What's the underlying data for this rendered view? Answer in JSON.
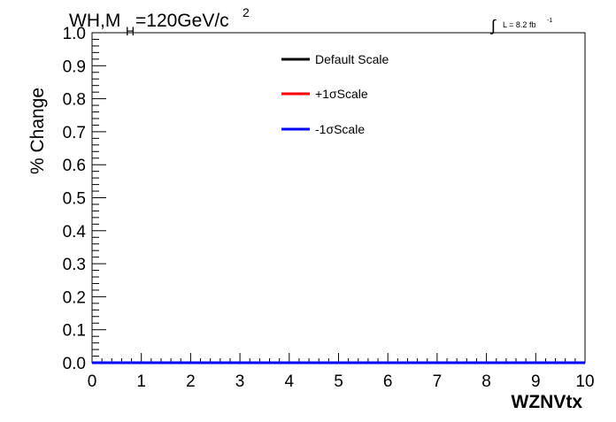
{
  "chart_data": {
    "type": "line",
    "title": {
      "process": "WH,M",
      "subscript": "H",
      "mass": "=120GeV/c",
      "superscript": "2"
    },
    "lumi": {
      "symbol": "∫",
      "text": "L = 8.2 fb",
      "superscript": "-1"
    },
    "xlabel": "WZNVtx",
    "ylabel": "% Change",
    "xlim": [
      0,
      10
    ],
    "ylim": [
      0,
      1.0
    ],
    "x_ticks": [
      "0",
      "1",
      "2",
      "3",
      "4",
      "5",
      "6",
      "7",
      "8",
      "9",
      "10"
    ],
    "y_ticks": [
      "0.0",
      "0.1",
      "0.2",
      "0.3",
      "0.4",
      "0.5",
      "0.6",
      "0.7",
      "0.8",
      "0.9",
      "1.0"
    ],
    "legend_position": "top-center",
    "series": [
      {
        "name": "Default Scale",
        "color": "#000000",
        "x": [
          0,
          10
        ],
        "values": [
          0,
          0
        ]
      },
      {
        "name": "+1σScale",
        "color": "#ff0000",
        "x": [
          0,
          10
        ],
        "values": [
          0,
          0
        ]
      },
      {
        "name": "-1σScale",
        "color": "#0000ff",
        "x": [
          0,
          10
        ],
        "values": [
          0,
          0
        ]
      }
    ]
  }
}
